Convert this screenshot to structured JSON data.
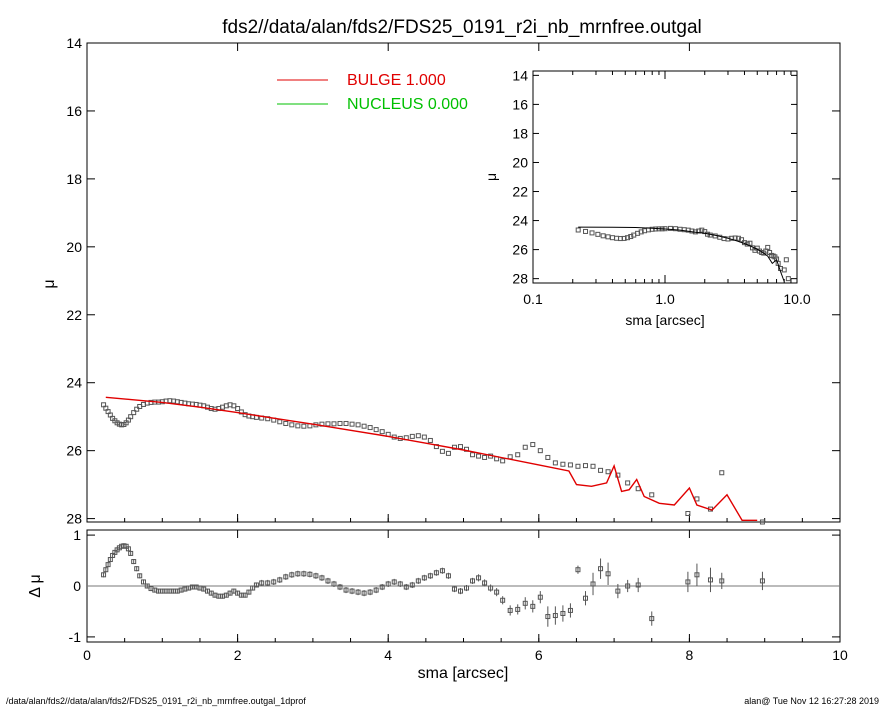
{
  "title": "fds2//data/alan/fds2/FDS25_0191_r2i_nb_mrnfree.outgal",
  "footer": {
    "left": "/data/alan/fds2//data/alan/fds2/FDS25_0191_r2i_nb_mrnfree.outgal_1dprof",
    "right": "alan@  Tue Nov 12 16:27:28 2019"
  },
  "colors": {
    "bulge": "#e00000",
    "nucleus": "#00c000",
    "data": "#555555",
    "axes": "#000000"
  },
  "chart_data": [
    {
      "id": "main",
      "type": "scatter",
      "title": "fds2//data/alan/fds2/FDS25_0191_r2i_nb_mrnfree.outgal",
      "ylabel": "μ",
      "xlabel": "",
      "xlim": [
        0,
        10
      ],
      "ylim": [
        28.1,
        14
      ],
      "xticks": [
        0,
        2,
        4,
        6,
        8,
        10
      ],
      "yticks": [
        14,
        16,
        18,
        20,
        22,
        24,
        26,
        28
      ],
      "legend": [
        {
          "label": "BULGE  1.000",
          "color": "#e00000"
        },
        {
          "label": "NUCLEUS  0.000",
          "color": "#00c000"
        }
      ],
      "legend_position": "top-left",
      "series": [
        {
          "name": "BULGE  1.000",
          "kind": "line",
          "x": [
            0.25,
            0.6,
            1.0,
            1.5,
            2.0,
            2.5,
            3.0,
            3.5,
            4.0,
            4.5,
            5.0,
            5.5,
            6.0,
            6.4,
            6.5,
            6.7,
            6.9,
            7.0,
            7.1,
            7.2,
            7.3,
            7.4,
            7.6,
            7.8,
            8.0,
            8.1,
            8.3,
            8.5,
            8.7,
            8.9
          ],
          "y": [
            24.43,
            24.5,
            24.58,
            24.72,
            24.88,
            25.05,
            25.22,
            25.4,
            25.58,
            25.78,
            25.98,
            26.2,
            26.42,
            26.6,
            27.0,
            27.05,
            26.95,
            26.45,
            27.2,
            27.15,
            26.85,
            27.35,
            27.55,
            27.6,
            27.1,
            27.6,
            27.75,
            27.3,
            28.05,
            28.05
          ]
        },
        {
          "name": "data",
          "kind": "points",
          "x": [
            0.22,
            0.25,
            0.28,
            0.31,
            0.34,
            0.37,
            0.4,
            0.43,
            0.46,
            0.49,
            0.52,
            0.55,
            0.58,
            0.62,
            0.66,
            0.7,
            0.75,
            0.8,
            0.85,
            0.9,
            0.95,
            1.0,
            1.05,
            1.1,
            1.15,
            1.2,
            1.25,
            1.3,
            1.35,
            1.4,
            1.45,
            1.5,
            1.55,
            1.6,
            1.65,
            1.7,
            1.75,
            1.8,
            1.85,
            1.9,
            1.95,
            2.0,
            2.05,
            2.1,
            2.15,
            2.2,
            2.25,
            2.32,
            2.4,
            2.48,
            2.56,
            2.64,
            2.72,
            2.8,
            2.88,
            2.96,
            3.04,
            3.12,
            3.2,
            3.28,
            3.36,
            3.44,
            3.52,
            3.6,
            3.68,
            3.76,
            3.84,
            3.92,
            4.0,
            4.08,
            4.16,
            4.24,
            4.32,
            4.4,
            4.48,
            4.56,
            4.64,
            4.72,
            4.8,
            4.88,
            4.96,
            5.04,
            5.12,
            5.2,
            5.28,
            5.36,
            5.44,
            5.52,
            5.62,
            5.72,
            5.82,
            5.92,
            6.02,
            6.12,
            6.22,
            6.32,
            6.42,
            6.52,
            6.62,
            6.72,
            6.82,
            6.92,
            7.05,
            7.18,
            7.32,
            7.5,
            7.98,
            8.1,
            8.28,
            8.43,
            8.97
          ],
          "y": [
            24.65,
            24.75,
            24.85,
            24.95,
            25.05,
            25.12,
            25.18,
            25.22,
            25.24,
            25.23,
            25.18,
            25.1,
            25.0,
            24.88,
            24.78,
            24.7,
            24.64,
            24.6,
            24.58,
            24.57,
            24.57,
            24.56,
            24.54,
            24.53,
            24.54,
            24.56,
            24.58,
            24.6,
            24.62,
            24.63,
            24.64,
            24.66,
            24.68,
            24.72,
            24.76,
            24.78,
            24.76,
            24.72,
            24.68,
            24.65,
            24.68,
            24.76,
            24.86,
            24.94,
            24.98,
            25.0,
            25.02,
            25.04,
            25.06,
            25.1,
            25.15,
            25.2,
            25.24,
            25.27,
            25.28,
            25.27,
            25.24,
            25.22,
            25.21,
            25.21,
            25.2,
            25.2,
            25.22,
            25.24,
            25.28,
            25.32,
            25.38,
            25.44,
            25.52,
            25.6,
            25.64,
            25.62,
            25.58,
            25.56,
            25.6,
            25.7,
            25.88,
            26.02,
            26.08,
            25.9,
            25.88,
            25.96,
            26.12,
            26.16,
            26.2,
            26.16,
            26.24,
            26.3,
            26.18,
            26.12,
            25.9,
            25.82,
            26.0,
            26.2,
            26.36,
            26.4,
            26.42,
            26.46,
            26.44,
            26.46,
            26.58,
            26.62,
            26.72,
            26.95,
            27.12,
            27.3,
            27.85,
            27.42,
            27.72,
            26.65,
            28.1
          ]
        }
      ]
    },
    {
      "id": "inset",
      "type": "scatter",
      "xlabel": "sma [arcsec]",
      "ylabel": "μ",
      "xscale": "log",
      "xlim": [
        0.1,
        10.0
      ],
      "ylim": [
        28.3,
        13.7
      ],
      "xticks": [
        0.1,
        1.0,
        10.0
      ],
      "xticklabels": [
        "0.1",
        "1.0",
        "10.0"
      ],
      "yticks": [
        14,
        16,
        18,
        20,
        22,
        24,
        26,
        28
      ],
      "series": [
        {
          "name": "model",
          "kind": "line",
          "x": [
            0.22,
            0.4,
            0.6,
            0.8,
            1.0,
            1.3,
            1.7,
            2.0,
            2.5,
            3.0,
            3.5,
            4.0,
            4.5,
            5.0,
            5.5,
            6.0,
            6.5,
            7.0,
            7.5,
            8.0
          ],
          "y": [
            24.45,
            24.46,
            24.48,
            24.53,
            24.58,
            24.66,
            24.8,
            24.88,
            25.05,
            25.22,
            25.4,
            25.58,
            25.78,
            25.98,
            26.2,
            26.45,
            26.95,
            26.7,
            27.5,
            28.2
          ]
        },
        {
          "name": "data",
          "kind": "points",
          "x": [
            0.22,
            0.25,
            0.28,
            0.31,
            0.34,
            0.37,
            0.4,
            0.43,
            0.46,
            0.49,
            0.52,
            0.55,
            0.58,
            0.62,
            0.66,
            0.7,
            0.75,
            0.8,
            0.85,
            0.9,
            0.95,
            1.0,
            1.1,
            1.2,
            1.3,
            1.4,
            1.5,
            1.6,
            1.7,
            1.8,
            1.9,
            2.0,
            2.1,
            2.2,
            2.4,
            2.6,
            2.8,
            3.0,
            3.2,
            3.4,
            3.6,
            3.8,
            4.0,
            4.2,
            4.4,
            4.6,
            4.8,
            5.0,
            5.2,
            5.4,
            5.6,
            5.8,
            6.0,
            6.2,
            6.4,
            6.6,
            6.8,
            7.0,
            7.2,
            7.5,
            8.0,
            8.3,
            8.6
          ],
          "y": [
            24.65,
            24.75,
            24.85,
            24.95,
            25.05,
            25.12,
            25.18,
            25.22,
            25.24,
            25.23,
            25.18,
            25.1,
            25.0,
            24.88,
            24.78,
            24.7,
            24.64,
            24.6,
            24.58,
            24.57,
            24.57,
            24.56,
            24.54,
            24.56,
            24.6,
            24.63,
            24.66,
            24.72,
            24.78,
            24.72,
            24.66,
            24.76,
            24.94,
            25.0,
            25.06,
            25.15,
            25.24,
            25.27,
            25.22,
            25.2,
            25.22,
            25.32,
            25.52,
            25.62,
            25.56,
            25.88,
            26.05,
            25.9,
            26.1,
            26.2,
            26.24,
            26.1,
            25.85,
            26.2,
            26.4,
            26.44,
            26.5,
            26.65,
            26.95,
            27.3,
            27.4,
            26.7,
            28.0
          ]
        }
      ]
    },
    {
      "id": "residual",
      "type": "scatter",
      "xlabel": "sma [arcsec]",
      "ylabel": "Δ μ",
      "xlim": [
        0,
        10
      ],
      "ylim": [
        -1.1,
        1.1
      ],
      "xticks": [
        0,
        2,
        4,
        6,
        8,
        10
      ],
      "yticks": [
        -1,
        0,
        1
      ],
      "series": [
        {
          "name": "residual",
          "kind": "points_errorbars",
          "x": [
            0.22,
            0.25,
            0.28,
            0.31,
            0.34,
            0.37,
            0.4,
            0.43,
            0.46,
            0.49,
            0.52,
            0.55,
            0.58,
            0.62,
            0.66,
            0.7,
            0.75,
            0.8,
            0.85,
            0.9,
            0.95,
            1.0,
            1.05,
            1.1,
            1.15,
            1.2,
            1.25,
            1.3,
            1.35,
            1.4,
            1.45,
            1.5,
            1.55,
            1.6,
            1.65,
            1.7,
            1.75,
            1.8,
            1.85,
            1.9,
            1.95,
            2.0,
            2.05,
            2.1,
            2.15,
            2.2,
            2.25,
            2.32,
            2.4,
            2.48,
            2.56,
            2.64,
            2.72,
            2.8,
            2.88,
            2.96,
            3.04,
            3.12,
            3.2,
            3.28,
            3.36,
            3.44,
            3.52,
            3.6,
            3.68,
            3.76,
            3.84,
            3.92,
            4.0,
            4.08,
            4.16,
            4.24,
            4.32,
            4.4,
            4.48,
            4.56,
            4.64,
            4.72,
            4.8,
            4.88,
            4.96,
            5.04,
            5.12,
            5.2,
            5.28,
            5.36,
            5.44,
            5.52,
            5.62,
            5.72,
            5.82,
            5.92,
            6.02,
            6.12,
            6.22,
            6.32,
            6.42,
            6.52,
            6.62,
            6.72,
            6.82,
            6.92,
            7.05,
            7.18,
            7.32,
            7.5,
            7.98,
            8.1,
            8.28,
            8.43,
            8.97
          ],
          "y": [
            0.22,
            0.32,
            0.42,
            0.52,
            0.6,
            0.66,
            0.71,
            0.75,
            0.78,
            0.79,
            0.78,
            0.73,
            0.64,
            0.48,
            0.34,
            0.2,
            0.08,
            0.0,
            -0.05,
            -0.08,
            -0.1,
            -0.1,
            -0.1,
            -0.1,
            -0.1,
            -0.1,
            -0.08,
            -0.06,
            -0.04,
            -0.02,
            -0.02,
            -0.04,
            -0.06,
            -0.1,
            -0.14,
            -0.18,
            -0.2,
            -0.2,
            -0.18,
            -0.14,
            -0.1,
            -0.14,
            -0.18,
            -0.18,
            -0.12,
            -0.04,
            0.02,
            0.06,
            0.06,
            0.08,
            0.12,
            0.18,
            0.22,
            0.24,
            0.24,
            0.23,
            0.2,
            0.16,
            0.1,
            0.04,
            -0.02,
            -0.08,
            -0.1,
            -0.12,
            -0.14,
            -0.12,
            -0.08,
            -0.02,
            0.04,
            0.08,
            0.04,
            -0.02,
            0.02,
            0.1,
            0.16,
            0.2,
            0.26,
            0.3,
            0.2,
            -0.06,
            -0.1,
            -0.04,
            0.1,
            0.16,
            0.06,
            -0.04,
            -0.12,
            -0.28,
            -0.48,
            -0.46,
            -0.34,
            -0.4,
            -0.22,
            -0.6,
            -0.58,
            -0.54,
            -0.48,
            0.32,
            -0.24,
            0.04,
            0.34,
            0.24,
            -0.1,
            0.0,
            0.02,
            -0.64,
            0.08,
            0.22,
            0.12,
            0.1,
            0.1
          ],
          "yerr": [
            0.05,
            0.05,
            0.05,
            0.05,
            0.05,
            0.05,
            0.05,
            0.05,
            0.05,
            0.05,
            0.05,
            0.05,
            0.05,
            0.05,
            0.05,
            0.05,
            0.05,
            0.05,
            0.05,
            0.05,
            0.05,
            0.05,
            0.05,
            0.05,
            0.05,
            0.05,
            0.05,
            0.05,
            0.05,
            0.05,
            0.05,
            0.05,
            0.05,
            0.05,
            0.05,
            0.05,
            0.05,
            0.05,
            0.05,
            0.05,
            0.05,
            0.05,
            0.05,
            0.05,
            0.05,
            0.05,
            0.05,
            0.06,
            0.06,
            0.06,
            0.06,
            0.06,
            0.06,
            0.06,
            0.06,
            0.06,
            0.06,
            0.06,
            0.06,
            0.06,
            0.06,
            0.06,
            0.06,
            0.06,
            0.06,
            0.06,
            0.06,
            0.06,
            0.06,
            0.06,
            0.06,
            0.06,
            0.06,
            0.06,
            0.06,
            0.06,
            0.06,
            0.06,
            0.06,
            0.06,
            0.06,
            0.06,
            0.06,
            0.07,
            0.07,
            0.07,
            0.08,
            0.08,
            0.1,
            0.1,
            0.12,
            0.12,
            0.12,
            0.2,
            0.18,
            0.16,
            0.14,
            0.08,
            0.14,
            0.22,
            0.2,
            0.22,
            0.14,
            0.12,
            0.14,
            0.14,
            0.2,
            0.22,
            0.24,
            0.16,
            0.18
          ]
        }
      ]
    }
  ]
}
